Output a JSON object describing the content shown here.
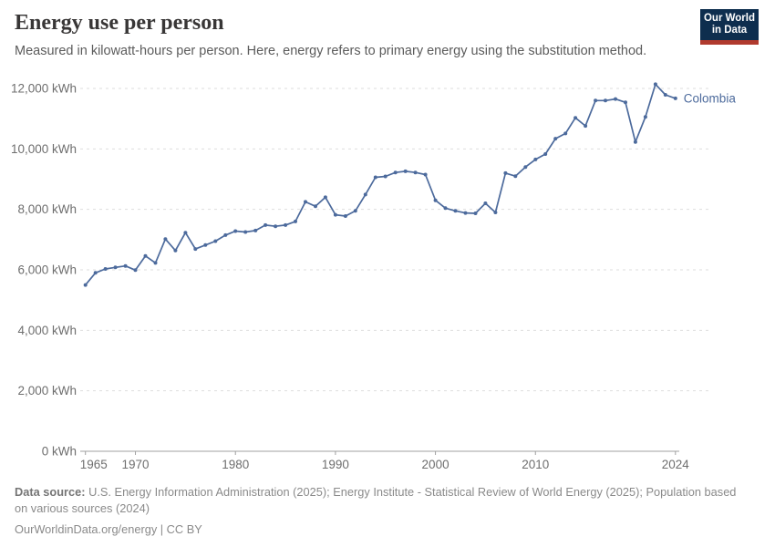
{
  "header": {
    "title": "Energy use per person",
    "subtitle": "Measured in kilowatt-hours per person. Here, energy refers to primary energy using the substitution method.",
    "logo": {
      "line1": "Our World",
      "line2": "in Data"
    }
  },
  "chart_data": {
    "type": "line",
    "title": "Energy use per person",
    "unit": "kWh",
    "entity_label": "Colombia",
    "x_start_year": 1965,
    "x_end_year": 2024,
    "x": [
      1965,
      1966,
      1967,
      1968,
      1969,
      1970,
      1971,
      1972,
      1973,
      1974,
      1975,
      1976,
      1977,
      1978,
      1979,
      1980,
      1981,
      1982,
      1983,
      1984,
      1985,
      1986,
      1987,
      1988,
      1989,
      1990,
      1991,
      1992,
      1993,
      1994,
      1995,
      1996,
      1997,
      1998,
      1999,
      2000,
      2001,
      2002,
      2003,
      2004,
      2005,
      2006,
      2007,
      2008,
      2009,
      2010,
      2011,
      2012,
      2013,
      2014,
      2015,
      2016,
      2017,
      2018,
      2019,
      2020,
      2021,
      2022,
      2023,
      2024
    ],
    "series": [
      {
        "name": "Colombia",
        "values": [
          5500,
          5900,
          6030,
          6080,
          6130,
          5990,
          6460,
          6230,
          7020,
          6640,
          7230,
          6690,
          6820,
          6950,
          7150,
          7280,
          7250,
          7300,
          7480,
          7440,
          7480,
          7600,
          8250,
          8100,
          8400,
          7820,
          7780,
          7950,
          8490,
          9060,
          9090,
          9220,
          9260,
          9220,
          9150,
          8300,
          8040,
          7950,
          7880,
          7870,
          8200,
          7900,
          9200,
          9100,
          9400,
          9650,
          9830,
          10340,
          10510,
          11030,
          10760,
          11600,
          11600,
          11650,
          11540,
          10230,
          11060,
          12140,
          11790,
          11670
        ]
      }
    ],
    "ylim": [
      0,
      12000
    ],
    "yticks": [
      {
        "value": 0,
        "label": "0 kWh"
      },
      {
        "value": 2000,
        "label": "2,000 kWh"
      },
      {
        "value": 4000,
        "label": "4,000 kWh"
      },
      {
        "value": 6000,
        "label": "6,000 kWh"
      },
      {
        "value": 8000,
        "label": "8,000 kWh"
      },
      {
        "value": 10000,
        "label": "10,000 kWh"
      },
      {
        "value": 12000,
        "label": "12,000 kWh"
      }
    ],
    "xticks": [
      1965,
      1970,
      1980,
      1990,
      2000,
      2010,
      2024
    ],
    "grid": "horizontal-dashed",
    "legend_position": "end-of-line",
    "line_color": "#4c6a9c",
    "grid_color": "#dedede",
    "axis_color": "#a0a0a0",
    "tick_label_color": "#6e6e6e"
  },
  "footer": {
    "source_label": "Data source:",
    "source_text": " U.S. Energy Information Administration (2025); Energy Institute - Statistical Review of World Energy (2025); Population based on various sources (2024)",
    "cc_line": "OurWorldinData.org/energy | CC BY"
  }
}
